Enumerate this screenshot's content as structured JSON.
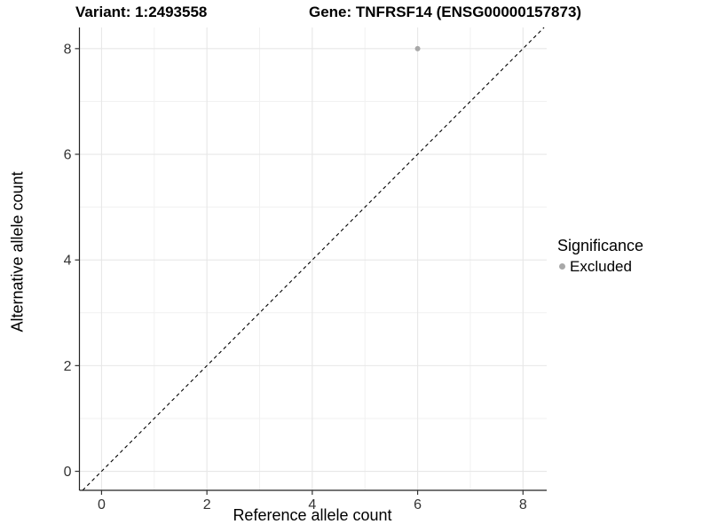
{
  "chart_data": {
    "type": "scatter",
    "title_left": "Variant: 1:2493558",
    "title_right": "Gene: TNFRSF14 (ENSG00000157873)",
    "xlabel": "Reference allele count",
    "ylabel": "Alternative allele count",
    "xlim": [
      -0.42,
      8.45
    ],
    "ylim": [
      -0.36,
      8.4
    ],
    "x_ticks": [
      0,
      2,
      4,
      6,
      8
    ],
    "y_ticks": [
      0,
      2,
      4,
      6,
      8
    ],
    "x_minor_ticks": [
      1,
      3,
      5,
      7
    ],
    "y_minor_ticks": [
      1,
      3,
      5,
      7
    ],
    "grid": true,
    "reference_line": {
      "type": "identity",
      "style": "dashed",
      "color": "#000000"
    },
    "series": [
      {
        "name": "Excluded",
        "color": "#a8a8a8",
        "points": [
          {
            "x": 6,
            "y": 8
          }
        ]
      }
    ],
    "legend": {
      "title": "Significance",
      "position": "right",
      "entries": [
        {
          "label": "Excluded",
          "color": "#a8a8a8"
        }
      ]
    },
    "colors": {
      "grid_major": "#e7e7e7",
      "grid_minor": "#f1f1f1",
      "axis_line": "#222222",
      "tick_mark": "#333333"
    }
  }
}
